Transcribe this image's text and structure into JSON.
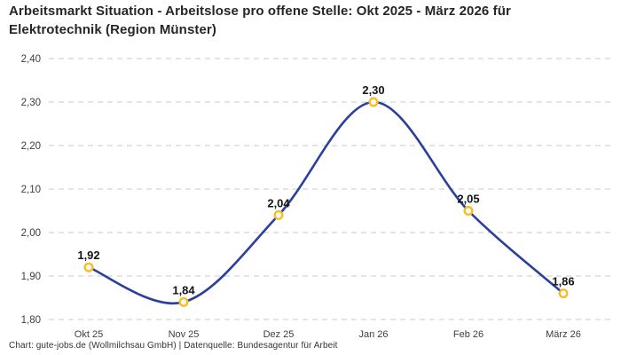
{
  "title": "Arbeitsmarkt Situation - Arbeitslose pro offene Stelle: Okt 2025 - März 2026 für Elektrotechnik (Region Münster)",
  "footer": "Chart: gute-jobs.de (Wollmilchsau GmbH) | Datenquelle: Bundesagentur für Arbeit",
  "chart_data": {
    "type": "line",
    "title": "Arbeitsmarkt Situation - Arbeitslose pro offene Stelle: Okt 2025 - März 2026 für Elektrotechnik (Region Münster)",
    "categories": [
      "Okt 25",
      "Nov 25",
      "Dez 25",
      "Jan 26",
      "Feb 26",
      "März 26"
    ],
    "values": [
      1.92,
      1.84,
      2.04,
      2.3,
      2.05,
      1.86
    ],
    "value_labels": [
      "1,92",
      "1,84",
      "2,04",
      "2,30",
      "2,05",
      "1,86"
    ],
    "series_name": "Arbeitslose pro offene Stelle",
    "ylim": [
      1.8,
      2.4
    ],
    "y_ticks": [
      {
        "label": "2,40",
        "value": 2.4
      },
      {
        "label": "2,30",
        "value": 2.3
      },
      {
        "label": "2,20",
        "value": 2.2
      },
      {
        "label": "2,10",
        "value": 2.1
      },
      {
        "label": "2,00",
        "value": 2.0
      },
      {
        "label": "1,90",
        "value": 1.9
      },
      {
        "label": "1,80",
        "value": 1.8
      }
    ],
    "grid": "horizontal-dashed",
    "legend": "none",
    "smoothing": "catmull-rom",
    "colors": {
      "line": "#2b3f9e",
      "marker_ring": "#fabd1f",
      "marker_fill": "#ffffff",
      "grid": "#c9c9c9",
      "tick_text": "#3d3d3d",
      "value_label_text": "#141414",
      "title_text": "#262626",
      "footer_text": "#333333"
    }
  }
}
